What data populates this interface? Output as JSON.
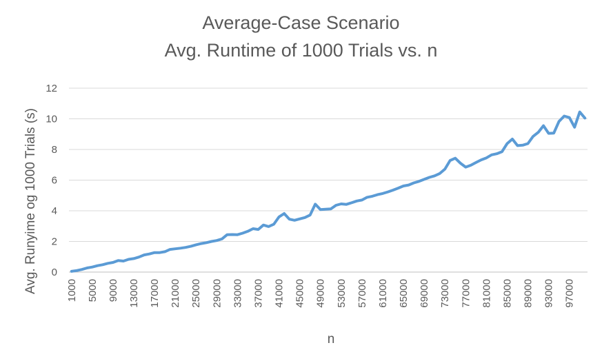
{
  "chart_data": {
    "type": "line",
    "title": "Average-Case Scenario",
    "subtitle": "Avg. Runtime of 1000 Trials vs. n",
    "xlabel": "n",
    "ylabel": "Avg. Runyime og 1000 Trials (s)",
    "ylim": [
      0,
      12
    ],
    "yticks": [
      "0",
      "2",
      "4",
      "6",
      "8",
      "10",
      "12"
    ],
    "xtick_labels": [
      "1000",
      "5000",
      "9000",
      "13000",
      "17000",
      "21000",
      "25000",
      "29000",
      "33000",
      "37000",
      "41000",
      "45000",
      "49000",
      "53000",
      "57000",
      "61000",
      "65000",
      "69000",
      "73000",
      "77000",
      "81000",
      "85000",
      "89000",
      "93000",
      "97000"
    ],
    "grid": true,
    "legend": "none",
    "series_color": "#5b9bd5",
    "x": [
      1000,
      2000,
      3000,
      4000,
      5000,
      6000,
      7000,
      8000,
      9000,
      10000,
      11000,
      12000,
      13000,
      14000,
      15000,
      16000,
      17000,
      18000,
      19000,
      20000,
      21000,
      22000,
      23000,
      24000,
      25000,
      26000,
      27000,
      28000,
      29000,
      30000,
      31000,
      32000,
      33000,
      34000,
      35000,
      36000,
      37000,
      38000,
      39000,
      40000,
      41000,
      42000,
      43000,
      44000,
      45000,
      46000,
      47000,
      48000,
      49000,
      50000,
      51000,
      52000,
      53000,
      54000,
      55000,
      56000,
      57000,
      58000,
      59000,
      60000,
      61000,
      62000,
      63000,
      64000,
      65000,
      66000,
      67000,
      68000,
      69000,
      70000,
      71000,
      72000,
      73000,
      74000,
      75000,
      76000,
      77000,
      78000,
      79000,
      80000,
      81000,
      82000,
      83000,
      84000,
      85000,
      86000,
      87000,
      88000,
      89000,
      90000,
      91000,
      92000,
      93000,
      94000,
      95000,
      96000,
      97000,
      98000,
      99000,
      100000
    ],
    "values": [
      0.05,
      0.1,
      0.17,
      0.27,
      0.33,
      0.42,
      0.48,
      0.57,
      0.63,
      0.75,
      0.72,
      0.83,
      0.88,
      0.98,
      1.12,
      1.18,
      1.27,
      1.27,
      1.33,
      1.48,
      1.52,
      1.56,
      1.61,
      1.68,
      1.78,
      1.86,
      1.92,
      2.0,
      2.06,
      2.16,
      2.44,
      2.45,
      2.44,
      2.54,
      2.66,
      2.83,
      2.78,
      3.07,
      2.97,
      3.12,
      3.6,
      3.82,
      3.45,
      3.38,
      3.47,
      3.56,
      3.72,
      4.43,
      4.08,
      4.1,
      4.12,
      4.36,
      4.45,
      4.42,
      4.52,
      4.64,
      4.7,
      4.88,
      4.95,
      5.05,
      5.13,
      5.23,
      5.35,
      5.48,
      5.62,
      5.68,
      5.82,
      5.92,
      6.05,
      6.18,
      6.28,
      6.43,
      6.72,
      7.28,
      7.43,
      7.1,
      6.85,
      6.97,
      7.15,
      7.32,
      7.45,
      7.65,
      7.72,
      7.85,
      8.38,
      8.68,
      8.25,
      8.28,
      8.38,
      8.85,
      9.12,
      9.55,
      9.05,
      9.07,
      9.83,
      10.18,
      10.08,
      9.45,
      10.45,
      10.05
    ]
  }
}
